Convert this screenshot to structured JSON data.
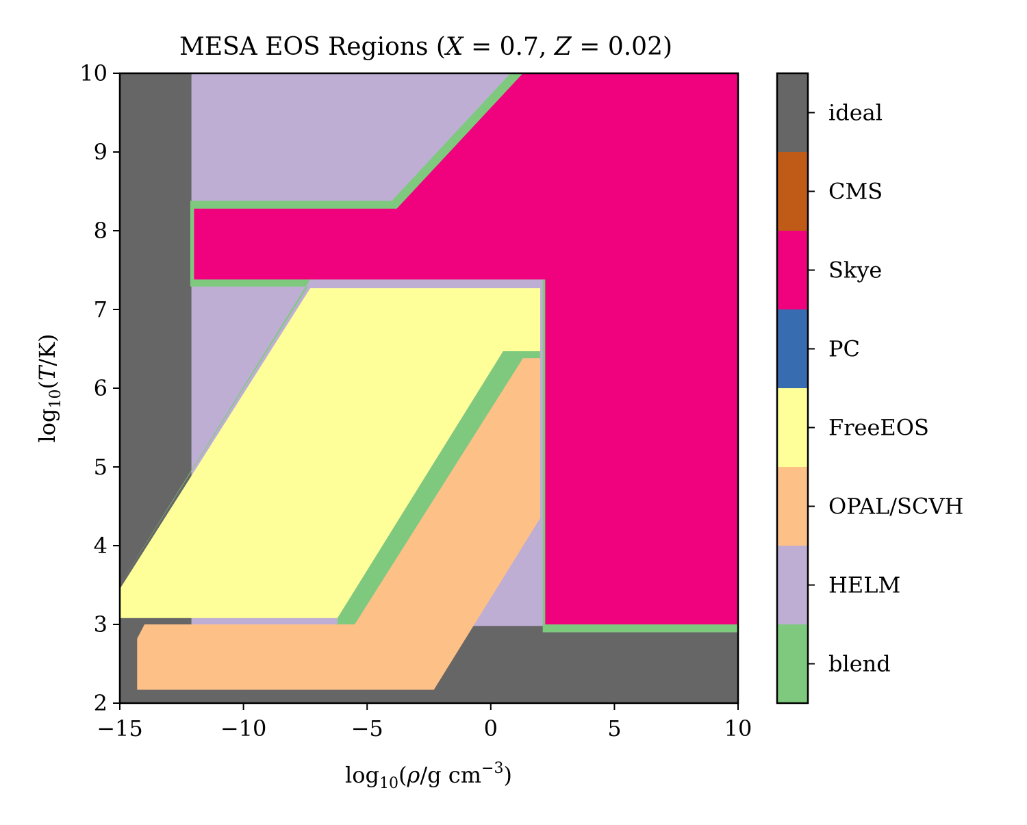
{
  "chart_data": {
    "type": "heatmap",
    "title": "MESA EOS Regions (X = 0.7, Z = 0.02)",
    "title_parts": [
      {
        "t": "MESA EOS Regions (",
        "i": false
      },
      {
        "t": "X",
        "i": true
      },
      {
        "t": " = 0.7, ",
        "i": false
      },
      {
        "t": "Z",
        "i": true
      },
      {
        "t": " = 0.02)",
        "i": false
      }
    ],
    "xlabel": "log10(ρ/g cm−3)",
    "ylabel": "log10(T/K)",
    "xlim": [
      -15,
      10
    ],
    "ylim": [
      2,
      10
    ],
    "x_ticks": [
      -15,
      -10,
      -5,
      0,
      5,
      10
    ],
    "x_tick_labels": [
      "−15",
      "−10",
      "−5",
      "0",
      "5",
      "10"
    ],
    "y_ticks": [
      2,
      3,
      4,
      5,
      6,
      7,
      8,
      9,
      10
    ],
    "y_tick_labels": [
      "2",
      "3",
      "4",
      "5",
      "6",
      "7",
      "8",
      "9",
      "10"
    ],
    "colorbar": {
      "labels": [
        "ideal",
        "CMS",
        "Skye",
        "PC",
        "FreeEOS",
        "OPAL/SCVH",
        "HELM",
        "blend"
      ],
      "colors": [
        "#666666",
        "#bf5b17",
        "#f0027f",
        "#386cb0",
        "#ffff99",
        "#fdc086",
        "#beaed4",
        "#7fc97f"
      ]
    },
    "regions": [
      {
        "name": "HELM",
        "color": "#beaed4",
        "polygon": [
          [
            -12.1,
            2
          ],
          [
            10,
            2
          ],
          [
            10,
            10
          ],
          [
            -12.1,
            10
          ]
        ]
      },
      {
        "name": "ideal",
        "color": "#666666",
        "polygon": [
          [
            -15,
            2
          ],
          [
            -12.1,
            2
          ],
          [
            -12.1,
            10
          ],
          [
            -15,
            10
          ]
        ]
      },
      {
        "name": "ideal",
        "color": "#666666",
        "polygon": [
          [
            -15,
            2
          ],
          [
            10,
            2
          ],
          [
            10,
            2.98
          ],
          [
            -15,
            2.98
          ]
        ]
      },
      {
        "name": "blend",
        "color": "#7fc97f",
        "polygon": [
          [
            -15,
            2.98
          ],
          [
            -15,
            3.5
          ],
          [
            -7.3,
            7.38
          ],
          [
            2.1,
            7.38
          ],
          [
            2.1,
            2.9
          ],
          [
            10,
            2.9
          ],
          [
            10,
            10
          ],
          [
            0.8,
            10
          ],
          [
            -4,
            8.38
          ],
          [
            -12.15,
            8.38
          ],
          [
            -12.15,
            7.29
          ],
          [
            -7.4,
            7.29
          ],
          [
            -15,
            3.5
          ]
        ]
      },
      {
        "name": "Skye",
        "color": "#f0027f",
        "polygon": [
          [
            -12.0,
            8.28
          ],
          [
            -3.8,
            8.28
          ],
          [
            1.3,
            10
          ],
          [
            10,
            10
          ],
          [
            10,
            3.0
          ],
          [
            2.2,
            3.0
          ],
          [
            2.2,
            7.38
          ],
          [
            -12.0,
            7.38
          ]
        ]
      },
      {
        "name": "FreeEOS",
        "color": "#ffff99",
        "polygon": [
          [
            -15,
            3.08
          ],
          [
            -15,
            3.45
          ],
          [
            -7.3,
            7.27
          ],
          [
            2.0,
            7.27
          ],
          [
            2.0,
            6.47
          ],
          [
            0.5,
            6.47
          ],
          [
            -6.2,
            3.08
          ]
        ]
      },
      {
        "name": "blend",
        "color": "#7fc97f",
        "polygon": [
          [
            -6.2,
            3.0
          ],
          [
            -5.5,
            3.0
          ],
          [
            1.3,
            6.38
          ],
          [
            2.0,
            6.38
          ],
          [
            2.0,
            6.47
          ],
          [
            0.5,
            6.47
          ],
          [
            -6.2,
            3.08
          ]
        ]
      },
      {
        "name": "OPAL/SCVH",
        "color": "#fdc086",
        "polygon": [
          [
            -14.3,
            2.17
          ],
          [
            -2.3,
            2.17
          ],
          [
            2.0,
            4.35
          ],
          [
            2.0,
            6.38
          ],
          [
            1.3,
            6.38
          ],
          [
            -5.5,
            3.0
          ],
          [
            -14.0,
            3.0
          ],
          [
            -14.3,
            2.82
          ]
        ]
      }
    ],
    "grid": false
  }
}
